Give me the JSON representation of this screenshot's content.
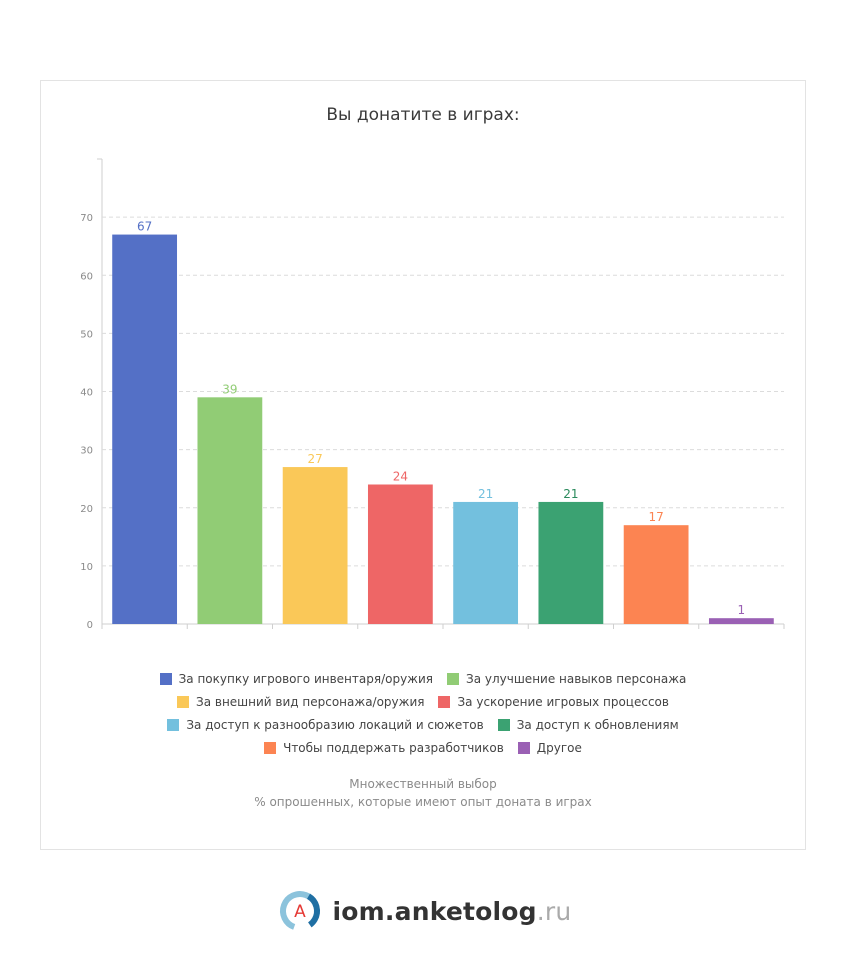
{
  "chart_data": {
    "type": "bar",
    "title": "Вы донатите в играх:",
    "categories": [
      "За покупку игрового инвентаря/оружия",
      "За улучшение навыков персонажа",
      "За внешний вид персонажа/оружия",
      "За ускорение игровых процессов",
      "За доступ к разнообразию локаций и сюжетов",
      "За доступ к обновлениям",
      "Чтобы поддержать разработчиков",
      "Другое"
    ],
    "values": [
      67,
      39,
      27,
      24,
      21,
      21,
      17,
      1
    ],
    "colors": [
      "#5470c6",
      "#91cc75",
      "#fac858",
      "#ee6666",
      "#73c0de",
      "#3ba272",
      "#fc8452",
      "#9a60b4"
    ],
    "label_colors": [
      "#5470c6",
      "#91cc75",
      "#fac858",
      "#ee6666",
      "#73c0de",
      "#2a8a5c",
      "#fc8452",
      "#9a60b4"
    ],
    "yticks": [
      0,
      10,
      20,
      30,
      40,
      50,
      60,
      70
    ],
    "ylim": [
      0,
      80
    ],
    "grid": true,
    "legend_position": "bottom"
  },
  "notes": {
    "line1": "Множественный выбор",
    "line2": "% опрошенных, которые имеют опыт доната в играх"
  },
  "brand": {
    "name": "iom.anketolog",
    "tld": ".ru",
    "logo_letter": "A"
  }
}
